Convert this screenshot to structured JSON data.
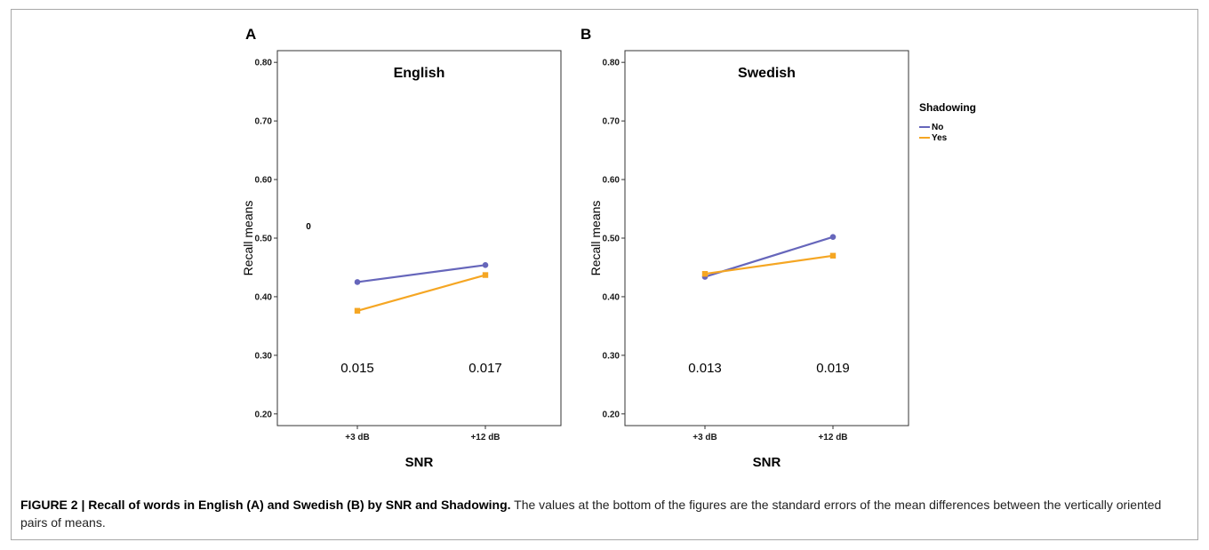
{
  "figure": {
    "caption_title": "FIGURE 2 | Recall of words in English (A) and Swedish (B) by SNR and Shadowing.",
    "caption_text": "The values at the bottom of the figures are the standard errors of the mean differences between the vertically oriented pairs of means."
  },
  "legend": {
    "title": "Shadowing",
    "items": [
      {
        "label": "No",
        "color": "#6666bb"
      },
      {
        "label": "Yes",
        "color": "#f5a623"
      }
    ]
  },
  "chart_data": [
    {
      "panel": "A",
      "type": "line",
      "title": "English",
      "xlabel": "SNR",
      "ylabel": "Recall means",
      "categories": [
        "+3 dB",
        "+12 dB"
      ],
      "ylim": [
        0.18,
        0.82
      ],
      "yticks": [
        "0.20",
        "0.30",
        "0.40",
        "0.50",
        "0.60",
        "0.70",
        "0.80"
      ],
      "series": [
        {
          "name": "No",
          "values": [
            0.425,
            0.454
          ],
          "color": "#6666bb",
          "marker": "circle"
        },
        {
          "name": "Yes",
          "values": [
            0.376,
            0.437
          ],
          "color": "#f5a623",
          "marker": "square"
        }
      ],
      "se_labels": [
        "0.015",
        "0.017"
      ],
      "annotation": "0"
    },
    {
      "panel": "B",
      "type": "line",
      "title": "Swedish",
      "xlabel": "SNR",
      "ylabel": "Recall means",
      "categories": [
        "+3 dB",
        "+12 dB"
      ],
      "ylim": [
        0.18,
        0.82
      ],
      "yticks": [
        "0.20",
        "0.30",
        "0.40",
        "0.50",
        "0.60",
        "0.70",
        "0.80"
      ],
      "series": [
        {
          "name": "No",
          "values": [
            0.434,
            0.502
          ],
          "color": "#6666bb",
          "marker": "circle"
        },
        {
          "name": "Yes",
          "values": [
            0.439,
            0.47
          ],
          "color": "#f5a623",
          "marker": "square"
        }
      ],
      "se_labels": [
        "0.013",
        "0.019"
      ],
      "annotation": ""
    }
  ]
}
